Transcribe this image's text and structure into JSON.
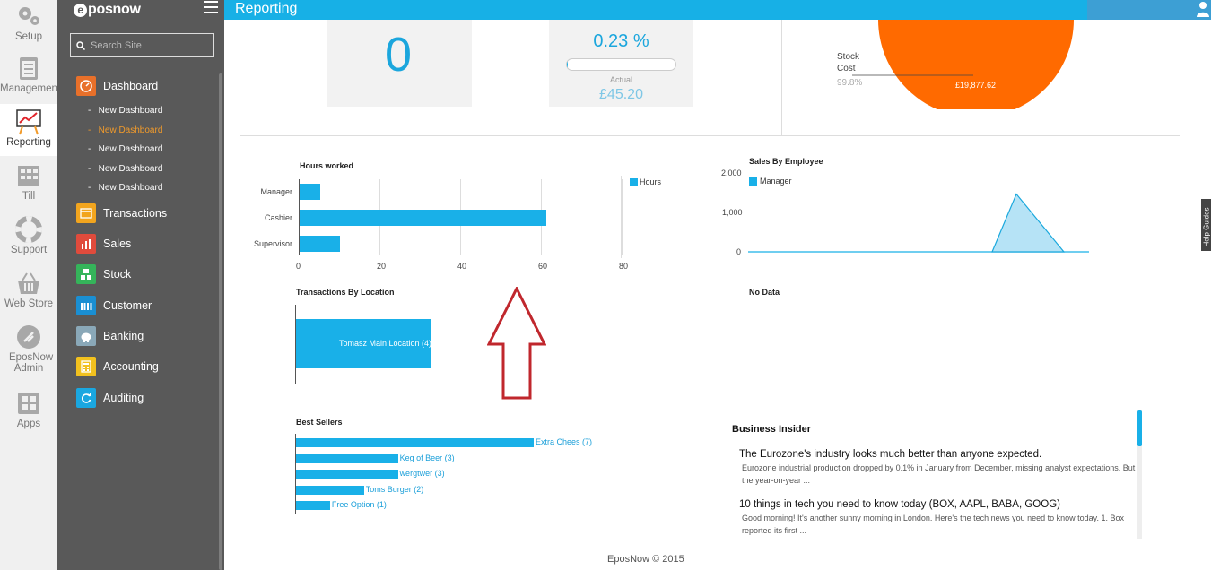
{
  "rail": {
    "items": [
      {
        "label": "Setup",
        "icon": "gears-icon"
      },
      {
        "label": "Management",
        "icon": "clipboard-icon"
      },
      {
        "label": "Reporting",
        "icon": "chart-easel-icon"
      },
      {
        "label": "Till",
        "icon": "till-icon"
      },
      {
        "label": "Support",
        "icon": "lifebuoy-icon"
      },
      {
        "label": "Web Store",
        "icon": "basket-icon"
      },
      {
        "label": "EposNow Admin",
        "icon": "admin-icon"
      },
      {
        "label": "Apps",
        "icon": "apps-grid-icon"
      }
    ],
    "active": "Reporting"
  },
  "sidebar": {
    "logo": "posnow",
    "logo_mark": "e",
    "search_placeholder": "Search Site",
    "menu": [
      {
        "label": "Dashboard",
        "color": "#e8702a"
      },
      {
        "label": "Transactions",
        "color": "#f2a51e"
      },
      {
        "label": "Sales",
        "color": "#e04b3c"
      },
      {
        "label": "Stock",
        "color": "#35b45a"
      },
      {
        "label": "Customer",
        "color": "#1a8fd3"
      },
      {
        "label": "Banking",
        "color": "#8aa8b8"
      },
      {
        "label": "Accounting",
        "color": "#f2c11e"
      },
      {
        "label": "Auditing",
        "color": "#1aa7e0"
      }
    ],
    "dashboard_sub": [
      "New Dashboard",
      "New Dashboard",
      "New Dashboard",
      "New Dashboard",
      "New Dashboard"
    ],
    "active_sub_index": 1
  },
  "header": {
    "title": "Reporting"
  },
  "kpis": {
    "left_value": "0",
    "pct_value": "0.23 %",
    "pct_progress": 0.0023,
    "actual_label": "Actual",
    "actual_value": "£45.20"
  },
  "pie": {
    "label_line1": "Stock",
    "label_line2": "Cost",
    "pct": "99.8%",
    "value_label": "£19,877.62",
    "color": "#ff6a00"
  },
  "chart_data": [
    {
      "type": "bar",
      "orientation": "horizontal",
      "title": "Hours worked",
      "categories": [
        "Manager",
        "Cashier",
        "Supervisor"
      ],
      "series": [
        {
          "name": "Hours",
          "values": [
            5,
            61,
            10
          ]
        }
      ],
      "xlim": [
        0,
        80
      ],
      "xticks": [
        "0",
        "20",
        "40",
        "60",
        "80"
      ],
      "grid": true,
      "legend": "top-right"
    },
    {
      "type": "area",
      "title": "Sales By Employee",
      "series": [
        {
          "name": "Manager",
          "values": [
            0,
            0,
            0,
            0,
            0,
            0,
            0,
            0,
            0,
            1500,
            0,
            0
          ]
        }
      ],
      "ylim": [
        0,
        2000
      ],
      "yticks": [
        "0",
        "1,000",
        "2,000"
      ],
      "legend": "top-left"
    },
    {
      "type": "bar",
      "orientation": "horizontal",
      "title": "Transactions By Location",
      "categories": [
        "Tomasz Main Location (4)"
      ],
      "values": [
        4
      ]
    },
    {
      "type": "bar",
      "orientation": "horizontal",
      "title": "Best Sellers",
      "categories": [
        "Extra Chees (7)",
        "Keg of Beer (3)",
        "wergtwer (3)",
        "Toms Burger (2)",
        "Free Option (1)"
      ],
      "values": [
        7,
        3,
        3,
        2,
        1
      ]
    }
  ],
  "no_data": "No Data",
  "news": {
    "title": "Business Insider",
    "items": [
      {
        "headline": "The Eurozone's industry looks much better than anyone expected.",
        "summary": "Eurozone industrial production dropped by 0.1% in January from December, missing analyst expectations. But the year-on-year ..."
      },
      {
        "headline": "10 things in tech you need to know today (BOX, AAPL, BABA, GOOG)",
        "summary": "Good morning! It's another sunny morning in London. Here's the tech news you need to know today. 1. Box reported its first ..."
      }
    ]
  },
  "help_tab": "Help Guides",
  "footer": "EposNow © 2015"
}
